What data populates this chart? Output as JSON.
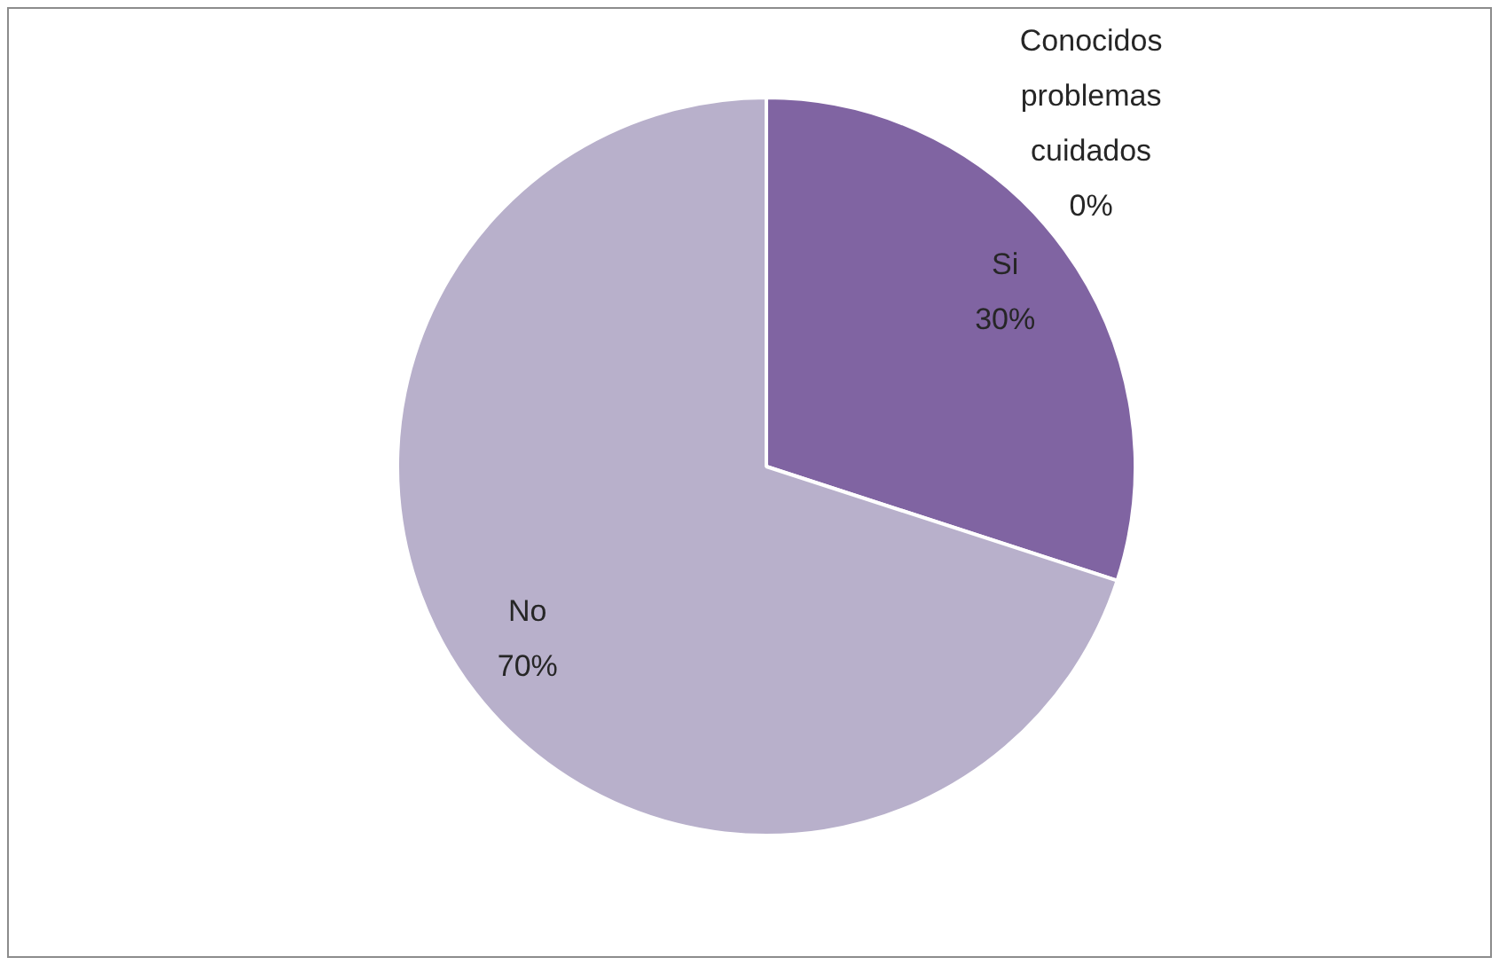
{
  "chart_data": {
    "type": "pie",
    "categories": [
      "Conocidos problemas cuidados",
      "Si",
      "No"
    ],
    "values": [
      0,
      30,
      70
    ],
    "value_labels": [
      "0%",
      "30%",
      "70%"
    ],
    "colors": [
      "#4f81bd",
      "#8064a2",
      "#b8b0cb"
    ],
    "legend": false
  }
}
